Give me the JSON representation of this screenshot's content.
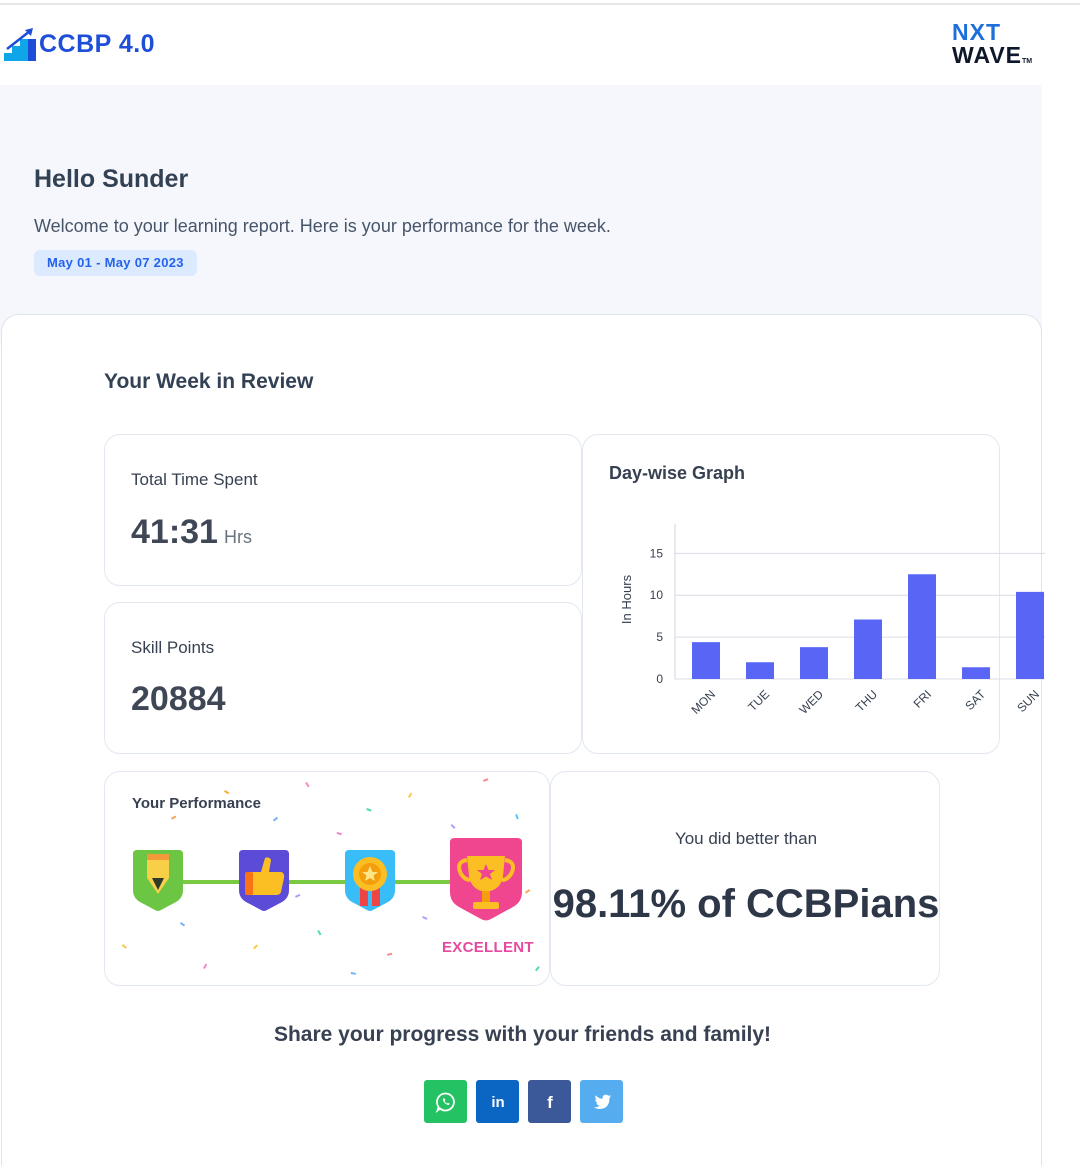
{
  "header": {
    "ccbp_logo_text": "CCBP 4.0",
    "nxtwave_logo": {
      "line1": "NXT",
      "line2": "WAVE",
      "mark": "TM"
    }
  },
  "hero": {
    "greeting": "Hello Sunder",
    "welcome": "Welcome to your learning report. Here is your performance for the week.",
    "date_range": "May 01 - May 07 2023"
  },
  "review": {
    "title": "Your Week in Review",
    "time_spent": {
      "label": "Total Time Spent",
      "value": "41:31",
      "unit": "Hrs"
    },
    "skill_points": {
      "label": "Skill Points",
      "value": "20884"
    },
    "performance": {
      "title": "Your Performance",
      "level": "EXCELLENT",
      "badges": [
        "pencil-badge-icon",
        "thumbs-up-badge-icon",
        "medal-badge-icon",
        "trophy-badge-icon"
      ],
      "current_level_index": 3
    },
    "comparison": {
      "label": "You did better than",
      "value": "98.11% of CCBPians"
    }
  },
  "chart_data": {
    "type": "bar",
    "title": "Day-wise Graph",
    "ylabel": "In Hours",
    "xlabel": "",
    "categories": [
      "MON",
      "TUE",
      "WED",
      "THU",
      "FRI",
      "SAT",
      "SUN"
    ],
    "values": [
      4.4,
      2.0,
      3.8,
      7.1,
      12.5,
      1.4,
      10.4
    ],
    "yticks": [
      0,
      5,
      10,
      15
    ],
    "ylim": [
      0,
      18.5
    ],
    "grid": true,
    "bar_color": "#5865f5"
  },
  "share": {
    "text": "Share your progress with your friends and family!",
    "buttons": [
      {
        "name": "whatsapp",
        "icon": "whatsapp-icon",
        "color": "#25c264"
      },
      {
        "name": "linkedin",
        "icon": "linkedin-icon",
        "label": "in",
        "color": "#0a66c2"
      },
      {
        "name": "facebook",
        "icon": "facebook-icon",
        "label": "f",
        "color": "#3b5998"
      },
      {
        "name": "twitter",
        "icon": "twitter-icon",
        "color": "#55acee"
      }
    ]
  },
  "colors": {
    "accent": "#2563eb",
    "hero_background": "#f5f7fc",
    "excellent": "#e64aa0"
  }
}
